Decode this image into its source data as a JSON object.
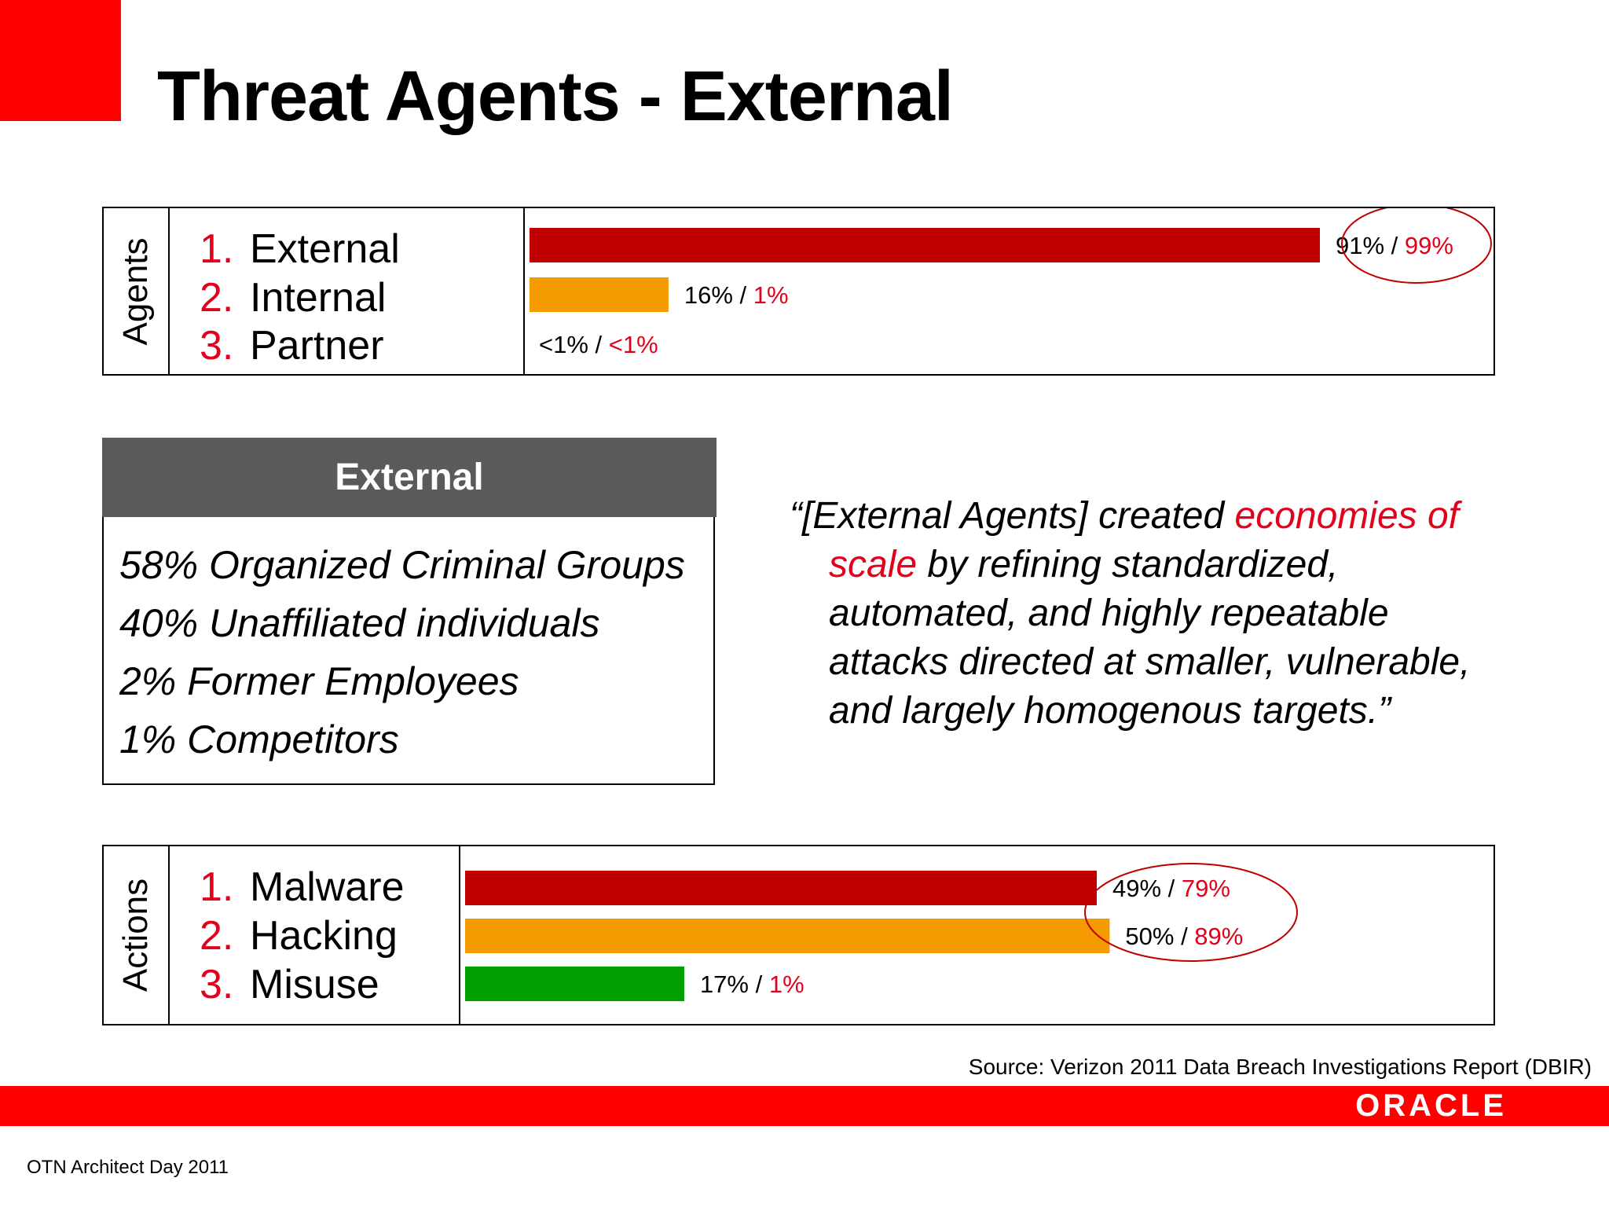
{
  "title": "Threat Agents - External",
  "chart_data": [
    {
      "type": "bar",
      "side_label": "Agents",
      "categories": [
        "External",
        "Internal",
        "Partner"
      ],
      "numbers": [
        "1.",
        "2.",
        "3."
      ],
      "series": [
        {
          "values": [
            91,
            16,
            0.5
          ],
          "labels": [
            "91%",
            "16%",
            "<1%"
          ]
        },
        {
          "values": [
            99,
            1,
            0.5
          ],
          "labels": [
            "99%",
            "1%",
            "<1%"
          ]
        }
      ],
      "colors": [
        "#c00000",
        "#f59a00",
        "#00a000"
      ],
      "circled": [
        0
      ]
    },
    {
      "type": "bar",
      "side_label": "Actions",
      "categories": [
        "Malware",
        "Hacking",
        "Misuse"
      ],
      "numbers": [
        "1.",
        "2.",
        "3."
      ],
      "series": [
        {
          "values": [
            49,
            50,
            17
          ],
          "labels": [
            "49%",
            "50%",
            "17%"
          ]
        },
        {
          "values": [
            79,
            89,
            1
          ],
          "labels": [
            "79%",
            "89%",
            "1%"
          ]
        }
      ],
      "colors": [
        "#c00000",
        "#f59a00",
        "#00a000"
      ],
      "circled": [
        0,
        1
      ]
    }
  ],
  "external_box": {
    "header": "External",
    "items": [
      "58% Organized Criminal Groups",
      "40% Unaffiliated individuals",
      "2% Former Employees",
      "1% Competitors"
    ]
  },
  "quote": {
    "l1a": "“[External Agents] created ",
    "l1b": "economies of",
    "l2a": "scale",
    "l2b": " by refining standardized,",
    "l3": "automated, and highly repeatable",
    "l4": "attacks directed at smaller, vulnerable,",
    "l5": "and largely homogenous targets.”"
  },
  "source": "Source: Verizon 2011 Data Breach Investigations Report (DBIR)",
  "logo": "ORACLE",
  "footer": "OTN Architect Day 2011",
  "colors": {
    "accent": "#ff0000",
    "highlight": "#e3001b",
    "header_gray": "#5a5a5d"
  }
}
